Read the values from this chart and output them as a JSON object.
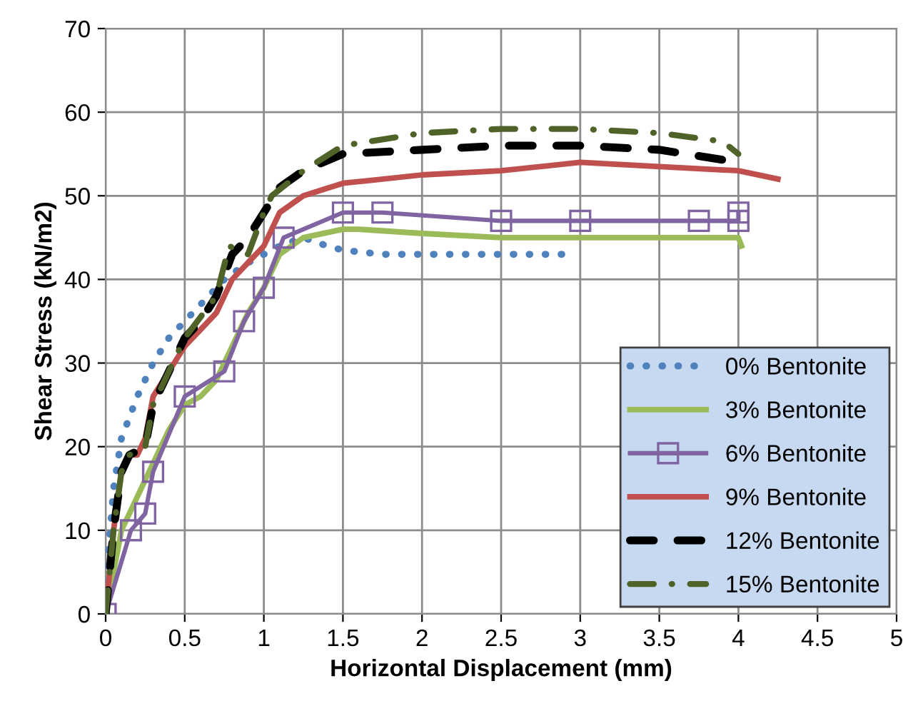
{
  "chart_data": {
    "type": "line",
    "xlabel": "Horizontal Displacement (mm)",
    "ylabel": "Shear Stress (kN/m2)",
    "xlim": [
      0,
      5
    ],
    "xticks": [
      0,
      0.5,
      1,
      1.5,
      2,
      2.5,
      3,
      3.5,
      4,
      4.5,
      5
    ],
    "ylim": [
      0,
      70
    ],
    "yticks": [
      0,
      10,
      20,
      30,
      40,
      50,
      60,
      70
    ],
    "grid": true,
    "legend": "bottom right",
    "series": [
      {
        "name": "0% Bentonite",
        "color": "#4f81bd",
        "line_style": "dotted",
        "x": [
          0,
          0.02,
          0.05,
          0.1,
          0.2,
          0.3,
          0.4,
          0.5,
          0.6,
          0.75,
          0.9,
          1.0,
          1.1,
          1.25,
          1.4,
          1.5,
          1.75,
          2,
          2.5,
          2.9
        ],
        "values": [
          0,
          8,
          15,
          21,
          26,
          30,
          33,
          35,
          37,
          40,
          42,
          43,
          44,
          45,
          44,
          43.5,
          43,
          43,
          43,
          43
        ]
      },
      {
        "name": "3% Bentonite",
        "color": "#9bbb59",
        "line_style": "solid",
        "x": [
          0,
          0.1,
          0.2,
          0.3,
          0.4,
          0.5,
          0.6,
          0.7,
          0.8,
          0.9,
          1.0,
          1.1,
          1.25,
          1.5,
          1.6,
          2,
          2.5,
          3,
          3.5,
          4,
          4.02
        ],
        "values": [
          0,
          10,
          14,
          18,
          22,
          25,
          26,
          28,
          32,
          36,
          39,
          43,
          45,
          46,
          46,
          45.5,
          45,
          45,
          45,
          45,
          44
        ]
      },
      {
        "name": "6% Bentonite",
        "color": "#8064a2",
        "line_style": "solid",
        "marker": "square",
        "x": [
          0,
          0.16,
          0.25,
          0.3,
          0.5,
          0.75,
          0.875,
          1.0,
          1.125,
          1.5,
          1.75,
          2.5,
          3.0,
          3.75,
          4.0,
          4.0
        ],
        "values": [
          0,
          10,
          12,
          17,
          26,
          29,
          35,
          39,
          45,
          48,
          48,
          47,
          47,
          47,
          47,
          48
        ]
      },
      {
        "name": "9% Bentonite",
        "color": "#c0504d",
        "line_style": "solid",
        "x": [
          0,
          0.05,
          0.1,
          0.15,
          0.2,
          0.25,
          0.3,
          0.4,
          0.5,
          0.6,
          0.7,
          0.8,
          0.9,
          1.0,
          1.1,
          1.25,
          1.5,
          2,
          2.5,
          3,
          3.5,
          4,
          4.25
        ],
        "values": [
          0,
          10,
          17,
          19,
          19,
          21,
          26,
          29,
          32,
          34,
          36,
          40,
          42,
          44,
          48,
          50,
          51.5,
          52.5,
          53,
          54,
          53.5,
          53,
          52
        ]
      },
      {
        "name": "12% Bentonite",
        "color": "#000000",
        "line_style": "dashed",
        "x": [
          0,
          0.05,
          0.1,
          0.15,
          0.25,
          0.3,
          0.4,
          0.5,
          0.6,
          0.7,
          0.8,
          0.9,
          1.0,
          1.1,
          1.25,
          1.5,
          2,
          2.5,
          3,
          3.5,
          4
        ],
        "values": [
          0,
          10,
          17,
          19,
          20,
          25,
          29,
          33,
          35,
          38,
          43,
          45,
          48,
          51,
          53,
          55,
          55.5,
          56,
          56,
          55.5,
          54
        ]
      },
      {
        "name": "15% Bentonite",
        "color": "#4f6228",
        "line_style": "dashdot",
        "x": [
          0,
          0.05,
          0.1,
          0.15,
          0.25,
          0.3,
          0.4,
          0.5,
          0.7,
          0.78,
          0.9,
          1.0,
          1.05,
          1.25,
          1.5,
          2,
          2.5,
          3,
          3.5,
          3.9,
          4.0
        ],
        "values": [
          0,
          10,
          17,
          19,
          20,
          25,
          29,
          33,
          38,
          44,
          43,
          48,
          50,
          53,
          56,
          57.5,
          58,
          58,
          57.5,
          56.5,
          55
        ]
      }
    ]
  }
}
